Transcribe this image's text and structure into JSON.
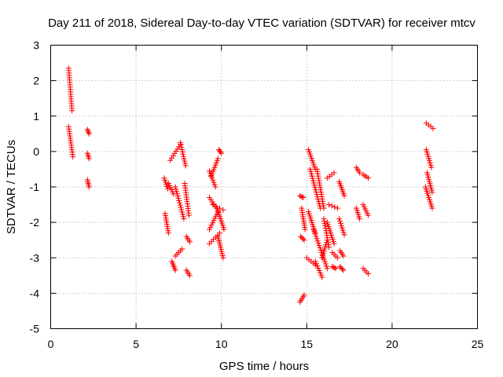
{
  "chart_data": {
    "type": "scatter",
    "title": "Day 211 of 2018, Sidereal Day-to-day VTEC variation (SDTVAR) for receiver mtcv",
    "xlabel": "GPS time / hours",
    "ylabel": "SDTVAR / TECUs",
    "xlim": [
      0,
      25
    ],
    "ylim": [
      -5,
      3
    ],
    "xticks": [
      0,
      5,
      10,
      15,
      20,
      25
    ],
    "yticks": [
      -5,
      -4,
      -3,
      -2,
      -1,
      0,
      1,
      2,
      3
    ],
    "grid": true,
    "marker": "plus",
    "color": "#ff0000",
    "series": [
      {
        "name": "SDTVAR",
        "segments": [
          {
            "x0": 1.05,
            "x1": 1.25,
            "y0": 2.35,
            "y1": 1.15
          },
          {
            "x0": 1.05,
            "x1": 1.3,
            "y0": 0.7,
            "y1": -0.15
          },
          {
            "x0": 2.15,
            "x1": 2.25,
            "y0": 0.62,
            "y1": 0.5
          },
          {
            "x0": 2.15,
            "x1": 2.25,
            "y0": -0.05,
            "y1": -0.2
          },
          {
            "x0": 2.15,
            "x1": 2.25,
            "y0": -0.8,
            "y1": -1.0
          },
          {
            "x0": 6.65,
            "x1": 6.85,
            "y0": -0.75,
            "y1": -1.05
          },
          {
            "x0": 6.7,
            "x1": 6.9,
            "y0": -1.75,
            "y1": -2.3
          },
          {
            "x0": 7.0,
            "x1": 7.6,
            "y0": -0.25,
            "y1": 0.2
          },
          {
            "x0": 7.6,
            "x1": 7.9,
            "y0": 0.25,
            "y1": -0.4
          },
          {
            "x0": 6.9,
            "x1": 7.2,
            "y0": -0.9,
            "y1": -1.2
          },
          {
            "x0": 7.3,
            "x1": 7.8,
            "y0": -1.0,
            "y1": -1.9
          },
          {
            "x0": 7.85,
            "x1": 8.1,
            "y0": -0.9,
            "y1": -1.8
          },
          {
            "x0": 7.1,
            "x1": 7.3,
            "y0": -3.1,
            "y1": -3.35
          },
          {
            "x0": 7.3,
            "x1": 7.7,
            "y0": -2.95,
            "y1": -2.75
          },
          {
            "x0": 7.95,
            "x1": 8.15,
            "y0": -2.4,
            "y1": -2.55
          },
          {
            "x0": 7.95,
            "x1": 8.15,
            "y0": -3.35,
            "y1": -3.5
          },
          {
            "x0": 9.3,
            "x1": 9.65,
            "y0": -0.55,
            "y1": -1.0
          },
          {
            "x0": 9.4,
            "x1": 9.8,
            "y0": -0.7,
            "y1": -0.2
          },
          {
            "x0": 9.85,
            "x1": 10.0,
            "y0": 0.05,
            "y1": -0.05
          },
          {
            "x0": 9.3,
            "x1": 9.7,
            "y0": -1.3,
            "y1": -1.6
          },
          {
            "x0": 9.5,
            "x1": 10.1,
            "y0": -1.5,
            "y1": -1.65
          },
          {
            "x0": 9.3,
            "x1": 9.8,
            "y0": -2.2,
            "y1": -1.7
          },
          {
            "x0": 9.75,
            "x1": 10.15,
            "y0": -1.6,
            "y1": -2.2
          },
          {
            "x0": 9.3,
            "x1": 9.9,
            "y0": -2.6,
            "y1": -2.3
          },
          {
            "x0": 9.8,
            "x1": 10.1,
            "y0": -2.4,
            "y1": -3.0
          },
          {
            "x0": 14.6,
            "x1": 14.8,
            "y0": -1.25,
            "y1": -1.3
          },
          {
            "x0": 14.7,
            "x1": 14.9,
            "y0": -1.6,
            "y1": -2.2
          },
          {
            "x0": 14.65,
            "x1": 14.85,
            "y0": -2.4,
            "y1": -2.5
          },
          {
            "x0": 14.6,
            "x1": 14.85,
            "y0": -4.25,
            "y1": -4.05
          },
          {
            "x0": 15.1,
            "x1": 15.5,
            "y0": 0.05,
            "y1": -0.5
          },
          {
            "x0": 15.2,
            "x1": 15.8,
            "y0": -0.5,
            "y1": -1.6
          },
          {
            "x0": 15.1,
            "x1": 15.5,
            "y0": -1.7,
            "y1": -2.3
          },
          {
            "x0": 15.4,
            "x1": 16.2,
            "y0": -2.2,
            "y1": -3.3
          },
          {
            "x0": 15.0,
            "x1": 15.5,
            "y0": -3.0,
            "y1": -3.2
          },
          {
            "x0": 15.5,
            "x1": 15.9,
            "y0": -3.1,
            "y1": -3.55
          },
          {
            "x0": 15.6,
            "x1": 16.0,
            "y0": -0.5,
            "y1": -1.6
          },
          {
            "x0": 16.0,
            "x1": 16.3,
            "y0": -1.9,
            "y1": -2.7
          },
          {
            "x0": 15.9,
            "x1": 16.2,
            "y0": -3.0,
            "y1": -2.5
          },
          {
            "x0": 16.2,
            "x1": 16.6,
            "y0": -0.75,
            "y1": -0.6
          },
          {
            "x0": 16.3,
            "x1": 16.8,
            "y0": -1.5,
            "y1": -1.6
          },
          {
            "x0": 16.2,
            "x1": 16.6,
            "y0": -2.0,
            "y1": -2.6
          },
          {
            "x0": 16.5,
            "x1": 16.8,
            "y0": -2.85,
            "y1": -3.0
          },
          {
            "x0": 16.5,
            "x1": 16.7,
            "y0": -3.25,
            "y1": -3.3
          },
          {
            "x0": 16.9,
            "x1": 17.2,
            "y0": -0.85,
            "y1": -1.25
          },
          {
            "x0": 16.9,
            "x1": 17.2,
            "y0": -1.9,
            "y1": -2.35
          },
          {
            "x0": 16.95,
            "x1": 17.15,
            "y0": -2.8,
            "y1": -2.95
          },
          {
            "x0": 16.95,
            "x1": 17.15,
            "y0": -3.25,
            "y1": -3.35
          },
          {
            "x0": 17.9,
            "x1": 18.1,
            "y0": -0.45,
            "y1": -0.6
          },
          {
            "x0": 17.9,
            "x1": 18.1,
            "y0": -1.6,
            "y1": -1.9
          },
          {
            "x0": 18.3,
            "x1": 18.6,
            "y0": -0.65,
            "y1": -0.75
          },
          {
            "x0": 18.3,
            "x1": 18.6,
            "y0": -1.5,
            "y1": -1.8
          },
          {
            "x0": 18.3,
            "x1": 18.6,
            "y0": -3.3,
            "y1": -3.45
          },
          {
            "x0": 22.0,
            "x1": 22.4,
            "y0": 0.8,
            "y1": 0.65
          },
          {
            "x0": 22.0,
            "x1": 22.3,
            "y0": 0.05,
            "y1": -0.45
          },
          {
            "x0": 22.05,
            "x1": 22.35,
            "y0": -0.6,
            "y1": -1.15
          },
          {
            "x0": 21.95,
            "x1": 22.35,
            "y0": -1.0,
            "y1": -1.6
          }
        ]
      }
    ]
  }
}
